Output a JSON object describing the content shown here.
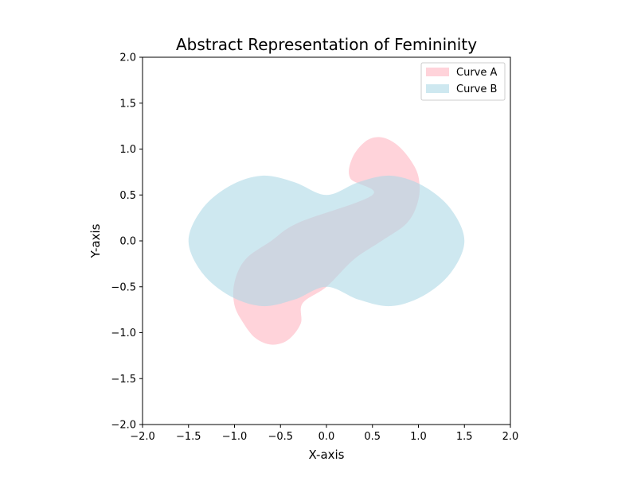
{
  "chart_data": {
    "type": "area",
    "title": "Abstract Representation of Femininity",
    "xlabel": "X-axis",
    "ylabel": "Y-axis",
    "xlim": [
      -2.0,
      2.0
    ],
    "ylim": [
      -2.0,
      2.0
    ],
    "x_ticks": [
      "−2.0",
      "−1.5",
      "−1.0",
      "−0.5",
      "0.0",
      "0.5",
      "1.0",
      "1.5",
      "2.0"
    ],
    "y_ticks": [
      "−2.0",
      "−1.5",
      "−1.0",
      "−0.5",
      "0.0",
      "0.5",
      "1.0",
      "1.5",
      "2.0"
    ],
    "grid": false,
    "legend_position": "top-right",
    "series": [
      {
        "name": "Curve A",
        "color": "#FFB6C1",
        "opacity": 0.6,
        "points": [
          [
            0.5,
            0.5
          ],
          [
            0.26,
            0.68
          ],
          [
            0.28,
            0.9
          ],
          [
            0.42,
            1.08
          ],
          [
            0.58,
            1.13
          ],
          [
            0.75,
            1.06
          ],
          [
            0.9,
            0.9
          ],
          [
            1.0,
            0.7
          ],
          [
            1.0,
            0.45
          ],
          [
            0.88,
            0.2
          ],
          [
            0.6,
            0.0
          ],
          [
            0.3,
            -0.2
          ],
          [
            0.0,
            -0.5
          ],
          [
            -0.26,
            -0.68
          ],
          [
            -0.28,
            -0.9
          ],
          [
            -0.42,
            -1.08
          ],
          [
            -0.6,
            -1.13
          ],
          [
            -0.77,
            -1.06
          ],
          [
            -0.9,
            -0.9
          ],
          [
            -1.0,
            -0.7
          ],
          [
            -1.0,
            -0.45
          ],
          [
            -0.88,
            -0.2
          ],
          [
            -0.6,
            0.0
          ],
          [
            -0.3,
            0.2
          ],
          [
            0.0,
            0.5
          ]
        ]
      },
      {
        "name": "Curve B",
        "color": "#ADD8E6",
        "opacity": 0.6,
        "points": [
          [
            0.0,
            0.5
          ],
          [
            0.35,
            0.64
          ],
          [
            0.7,
            0.71
          ],
          [
            1.05,
            0.6
          ],
          [
            1.35,
            0.35
          ],
          [
            1.5,
            0.0
          ],
          [
            1.35,
            -0.35
          ],
          [
            1.05,
            -0.6
          ],
          [
            0.7,
            -0.71
          ],
          [
            0.35,
            -0.64
          ],
          [
            0.0,
            -0.5
          ],
          [
            -0.35,
            -0.64
          ],
          [
            -0.7,
            -0.71
          ],
          [
            -1.05,
            -0.6
          ],
          [
            -1.35,
            -0.35
          ],
          [
            -1.5,
            0.0
          ],
          [
            -1.35,
            0.35
          ],
          [
            -1.05,
            0.6
          ],
          [
            -0.7,
            0.71
          ],
          [
            -0.35,
            0.64
          ],
          [
            0.0,
            0.5
          ]
        ]
      }
    ]
  }
}
